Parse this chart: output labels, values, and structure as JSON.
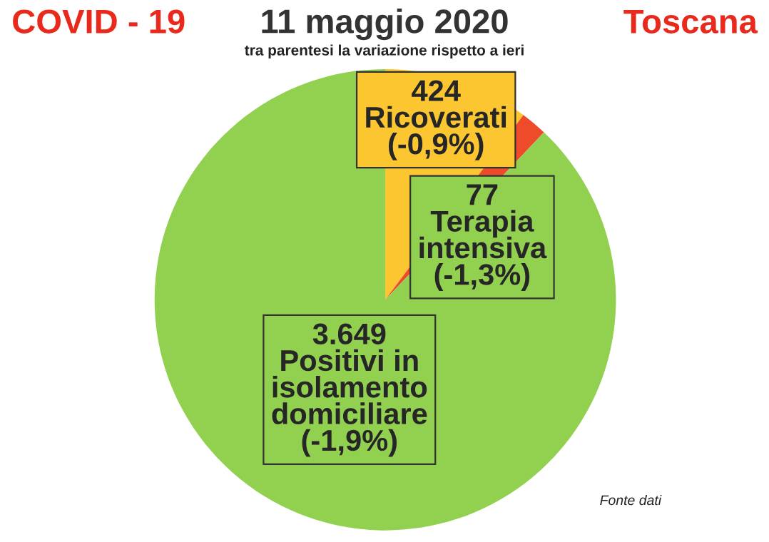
{
  "chart_data": {
    "type": "pie",
    "title": "11 maggio 2020",
    "subtitle": "tra parentesi la variazione rispetto a ieri",
    "categories": [
      "Ricoverati",
      "Terapia\nintensiva",
      "Positivi in\nisolamento\ndomiciliare"
    ],
    "values": [
      424,
      77,
      3649
    ],
    "value_labels": [
      "424",
      "77",
      "3.649"
    ],
    "colors": [
      "#fcc630",
      "#ee4b2b",
      "#92d050"
    ],
    "annotations": [
      {
        "text": "(-0,9%)",
        "x": "Ricoverati"
      },
      {
        "text": "(-1,3%)",
        "x": "Terapia\nintensiva"
      },
      {
        "text": "(-1,9%)",
        "x": "Positivi in\nisolamento\ndomiciliare"
      },
      "COVID - 19",
      "Toscana",
      "Fonte dati"
    ]
  }
}
